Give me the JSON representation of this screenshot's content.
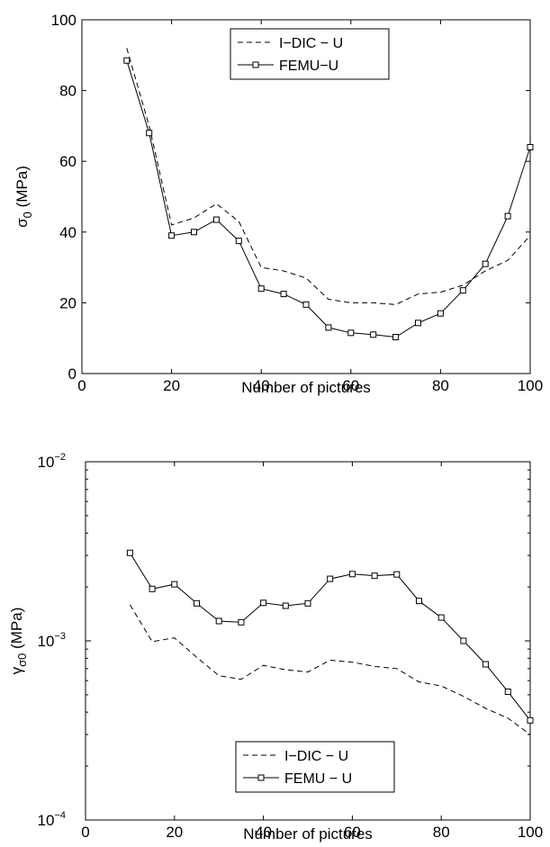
{
  "chart_data": [
    {
      "type": "line",
      "title": "",
      "xlabel": "Number of pictures",
      "ylabel": {
        "symbol": "σ",
        "subscript": "0",
        "unit": " (MPa)"
      },
      "xlim": [
        0,
        100
      ],
      "ylim": [
        0,
        100
      ],
      "yscale": "linear",
      "xticks": [
        0,
        20,
        40,
        60,
        80,
        100
      ],
      "yticks": [
        0,
        20,
        40,
        60,
        80,
        100
      ],
      "grid": false,
      "legend_position": "top-center",
      "x": [
        10,
        15,
        20,
        25,
        30,
        35,
        40,
        45,
        50,
        55,
        60,
        65,
        70,
        75,
        80,
        85,
        90,
        95,
        100
      ],
      "series": [
        {
          "name": "I−DIC − U",
          "style": "dashed",
          "marker": "none",
          "color": "#000000",
          "values": [
            92,
            70,
            42,
            44,
            48,
            43,
            30,
            29,
            27,
            21,
            20,
            20,
            19.5,
            22.5,
            23,
            25,
            29,
            32,
            39
          ]
        },
        {
          "name": "FEMU−U",
          "style": "solid",
          "marker": "square",
          "color": "#000000",
          "values": [
            88.5,
            68,
            39,
            40,
            43.5,
            37.5,
            24,
            22.5,
            19.5,
            13,
            11.5,
            11,
            10.3,
            14.3,
            17,
            23.5,
            31,
            44.5,
            64
          ]
        }
      ]
    },
    {
      "type": "line",
      "title": "",
      "xlabel": "Number of pictures",
      "ylabel": {
        "symbol": "γ",
        "subscript": "σ0",
        "unit": " (MPa)"
      },
      "xlim": [
        0,
        100
      ],
      "ylim": [
        0.0001,
        0.01
      ],
      "yscale": "log",
      "xticks": [
        0,
        20,
        40,
        60,
        80,
        100
      ],
      "yticks": [
        {
          "value": 0.0001,
          "base": "10",
          "exp": "−4"
        },
        {
          "value": 0.001,
          "base": "10",
          "exp": "−3"
        },
        {
          "value": 0.01,
          "base": "10",
          "exp": "−2"
        }
      ],
      "grid": false,
      "legend_position": "bottom-center",
      "x": [
        10,
        15,
        20,
        25,
        30,
        35,
        40,
        45,
        50,
        55,
        60,
        65,
        70,
        75,
        80,
        85,
        90,
        95,
        100
      ],
      "series": [
        {
          "name": "I−DIC − U",
          "style": "dashed",
          "marker": "none",
          "color": "#000000",
          "values": [
            0.00159,
            0.00099,
            0.00104,
            0.00081,
            0.00064,
            0.00061,
            0.00073,
            0.00069,
            0.00067,
            0.00078,
            0.00076,
            0.00072,
            0.0007,
            0.00059,
            0.00056,
            0.00049,
            0.00042,
            0.00037,
            0.0003
          ]
        },
        {
          "name": "FEMU − U",
          "style": "solid",
          "marker": "square",
          "color": "#000000",
          "values": [
            0.0031,
            0.00195,
            0.00207,
            0.00162,
            0.00129,
            0.00127,
            0.00163,
            0.00157,
            0.00162,
            0.00222,
            0.00236,
            0.00231,
            0.00235,
            0.00167,
            0.00135,
            0.001,
            0.00074,
            0.00052,
            0.00036
          ]
        }
      ]
    }
  ]
}
